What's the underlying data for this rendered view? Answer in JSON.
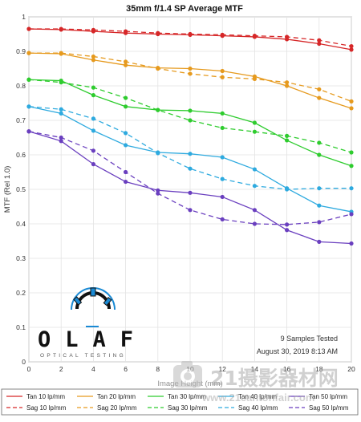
{
  "chart_data": {
    "type": "line",
    "title": "35mm f/1.4 SP Average MTF",
    "xlabel": "Image Height (mm)",
    "ylabel": "MTF (Rel 1.0)",
    "xlim": [
      0,
      20
    ],
    "ylim": [
      0,
      1
    ],
    "x_ticks": [
      "0",
      "2",
      "4",
      "6",
      "8",
      "10",
      "12",
      "14",
      "16",
      "18",
      "20"
    ],
    "y_ticks": [
      "0",
      "0.1",
      "0.2",
      "0.3",
      "0.4",
      "0.5",
      "0.6",
      "0.7",
      "0.8",
      "0.9",
      "1"
    ],
    "grid": true,
    "x": [
      0,
      2,
      4,
      6,
      8,
      10,
      12,
      14,
      16,
      18,
      20
    ],
    "series": [
      {
        "name": "Tan 10 lp/mm",
        "color": "#d62728",
        "dash": "solid",
        "values": [
          0.965,
          0.963,
          0.958,
          0.953,
          0.95,
          0.948,
          0.945,
          0.942,
          0.935,
          0.922,
          0.905
        ]
      },
      {
        "name": "Sag 10 lp/mm",
        "color": "#d62728",
        "dash": "dashed",
        "values": [
          0.965,
          0.965,
          0.962,
          0.958,
          0.953,
          0.95,
          0.948,
          0.945,
          0.942,
          0.932,
          0.915
        ]
      },
      {
        "name": "Tan 20 lp/mm",
        "color": "#e69a1e",
        "dash": "solid",
        "values": [
          0.895,
          0.893,
          0.875,
          0.86,
          0.852,
          0.85,
          0.843,
          0.827,
          0.8,
          0.765,
          0.735
        ]
      },
      {
        "name": "Sag 20 lp/mm",
        "color": "#e69a1e",
        "dash": "dashed",
        "values": [
          0.895,
          0.895,
          0.885,
          0.87,
          0.85,
          0.835,
          0.825,
          0.82,
          0.81,
          0.79,
          0.755
        ]
      },
      {
        "name": "Tan 30 lp/mm",
        "color": "#2ecc2e",
        "dash": "solid",
        "values": [
          0.818,
          0.815,
          0.773,
          0.74,
          0.73,
          0.728,
          0.72,
          0.693,
          0.642,
          0.6,
          0.568
        ]
      },
      {
        "name": "Sag 30 lp/mm",
        "color": "#2ecc2e",
        "dash": "dashed",
        "values": [
          0.818,
          0.81,
          0.795,
          0.765,
          0.73,
          0.7,
          0.678,
          0.667,
          0.655,
          0.635,
          0.607
        ]
      },
      {
        "name": "Tan 40 lp/mm",
        "color": "#2eaadf",
        "dash": "solid",
        "values": [
          0.74,
          0.72,
          0.67,
          0.628,
          0.607,
          0.603,
          0.593,
          0.558,
          0.503,
          0.453,
          0.435
        ]
      },
      {
        "name": "Sag 40 lp/mm",
        "color": "#2eaadf",
        "dash": "dashed",
        "values": [
          0.74,
          0.732,
          0.705,
          0.663,
          0.605,
          0.56,
          0.53,
          0.51,
          0.5,
          0.503,
          0.503
        ]
      },
      {
        "name": "Tan 50 lp/mm",
        "color": "#6a3fbf",
        "dash": "solid",
        "values": [
          0.668,
          0.64,
          0.573,
          0.522,
          0.497,
          0.49,
          0.478,
          0.44,
          0.382,
          0.348,
          0.343
        ]
      },
      {
        "name": "Sag 50 lp/mm",
        "color": "#6a3fbf",
        "dash": "dashed",
        "values": [
          0.668,
          0.65,
          0.612,
          0.55,
          0.488,
          0.44,
          0.413,
          0.4,
          0.398,
          0.405,
          0.428
        ]
      }
    ],
    "annotations": [
      "9 Samples Tested",
      "August 30, 2019  8:13 AM"
    ],
    "legend_position": "bottom"
  },
  "logo": {
    "letters": "OLAF",
    "subtitle": "OPTICAL TESTING"
  },
  "watermark": {
    "text": "21摄影器材网",
    "url": "www.21cantonfair.com"
  }
}
